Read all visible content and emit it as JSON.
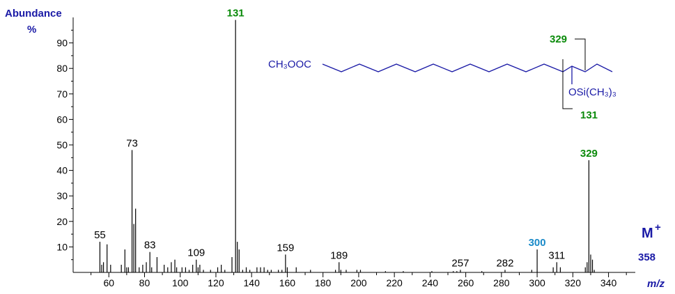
{
  "chart_data": {
    "type": "bar",
    "ylabel_line1": "Abundance",
    "ylabel_line2": "%",
    "xlabel": "m/z",
    "xlim": [
      40,
      355
    ],
    "ylim": [
      0,
      100
    ],
    "x_ticks": [
      60,
      80,
      100,
      120,
      140,
      160,
      180,
      200,
      220,
      240,
      260,
      280,
      300,
      320,
      340
    ],
    "y_ticks": [
      10,
      20,
      30,
      40,
      50,
      60,
      70,
      80,
      90
    ],
    "peaks": [
      {
        "mz": 55,
        "abundance": 12,
        "label": "55"
      },
      {
        "mz": 56,
        "abundance": 3
      },
      {
        "mz": 57,
        "abundance": 4
      },
      {
        "mz": 59,
        "abundance": 11
      },
      {
        "mz": 61,
        "abundance": 3
      },
      {
        "mz": 67,
        "abundance": 3
      },
      {
        "mz": 69,
        "abundance": 9
      },
      {
        "mz": 70,
        "abundance": 2
      },
      {
        "mz": 71,
        "abundance": 2
      },
      {
        "mz": 73,
        "abundance": 48,
        "label": "73"
      },
      {
        "mz": 74,
        "abundance": 19
      },
      {
        "mz": 75,
        "abundance": 25
      },
      {
        "mz": 77,
        "abundance": 2
      },
      {
        "mz": 79,
        "abundance": 3
      },
      {
        "mz": 81,
        "abundance": 4
      },
      {
        "mz": 83,
        "abundance": 8,
        "label": "83"
      },
      {
        "mz": 84,
        "abundance": 2
      },
      {
        "mz": 87,
        "abundance": 6
      },
      {
        "mz": 91,
        "abundance": 3
      },
      {
        "mz": 93,
        "abundance": 2
      },
      {
        "mz": 95,
        "abundance": 4
      },
      {
        "mz": 97,
        "abundance": 5
      },
      {
        "mz": 98,
        "abundance": 2
      },
      {
        "mz": 101,
        "abundance": 2
      },
      {
        "mz": 103,
        "abundance": 2
      },
      {
        "mz": 105,
        "abundance": 1
      },
      {
        "mz": 107,
        "abundance": 3
      },
      {
        "mz": 109,
        "abundance": 5,
        "label": "109"
      },
      {
        "mz": 110,
        "abundance": 2
      },
      {
        "mz": 111,
        "abundance": 3
      },
      {
        "mz": 113,
        "abundance": 1
      },
      {
        "mz": 117,
        "abundance": 1
      },
      {
        "mz": 121,
        "abundance": 2
      },
      {
        "mz": 123,
        "abundance": 3
      },
      {
        "mz": 125,
        "abundance": 1
      },
      {
        "mz": 129,
        "abundance": 6
      },
      {
        "mz": 131,
        "abundance": 99,
        "label": "131",
        "label_color": "#0a8a0a"
      },
      {
        "mz": 132,
        "abundance": 12
      },
      {
        "mz": 133,
        "abundance": 9
      },
      {
        "mz": 135,
        "abundance": 1
      },
      {
        "mz": 137,
        "abundance": 2
      },
      {
        "mz": 139,
        "abundance": 1
      },
      {
        "mz": 143,
        "abundance": 2
      },
      {
        "mz": 145,
        "abundance": 2
      },
      {
        "mz": 147,
        "abundance": 2
      },
      {
        "mz": 149,
        "abundance": 1
      },
      {
        "mz": 151,
        "abundance": 1
      },
      {
        "mz": 155,
        "abundance": 1
      },
      {
        "mz": 157,
        "abundance": 1
      },
      {
        "mz": 159,
        "abundance": 7,
        "label": "159"
      },
      {
        "mz": 160,
        "abundance": 2
      },
      {
        "mz": 165,
        "abundance": 2
      },
      {
        "mz": 173,
        "abundance": 1
      },
      {
        "mz": 187,
        "abundance": 1
      },
      {
        "mz": 189,
        "abundance": 4,
        "label": "189"
      },
      {
        "mz": 190,
        "abundance": 1
      },
      {
        "mz": 193,
        "abundance": 1
      },
      {
        "mz": 199,
        "abundance": 1
      },
      {
        "mz": 201,
        "abundance": 1
      },
      {
        "mz": 215,
        "abundance": 0.5
      },
      {
        "mz": 225,
        "abundance": 0.5
      },
      {
        "mz": 241,
        "abundance": 0.5
      },
      {
        "mz": 253,
        "abundance": 0.5
      },
      {
        "mz": 255,
        "abundance": 0.5
      },
      {
        "mz": 257,
        "abundance": 1,
        "label": "257"
      },
      {
        "mz": 269,
        "abundance": 0.5
      },
      {
        "mz": 282,
        "abundance": 1,
        "label": "282"
      },
      {
        "mz": 297,
        "abundance": 1
      },
      {
        "mz": 300,
        "abundance": 9,
        "label": "300",
        "label_color": "#1a8ac8"
      },
      {
        "mz": 309,
        "abundance": 2
      },
      {
        "mz": 311,
        "abundance": 4,
        "label": "311"
      },
      {
        "mz": 313,
        "abundance": 2
      },
      {
        "mz": 327,
        "abundance": 2
      },
      {
        "mz": 328,
        "abundance": 4
      },
      {
        "mz": 329,
        "abundance": 44,
        "label": "329",
        "label_color": "#0a8a0a"
      },
      {
        "mz": 330,
        "abundance": 7
      },
      {
        "mz": 331,
        "abundance": 5
      },
      {
        "mz": 332,
        "abundance": 1
      }
    ],
    "molecular_ion": {
      "label": "M",
      "sup": "+",
      "mz_label": "358"
    }
  },
  "structure": {
    "ester_group": "CH₃OOC",
    "tms_group": "OSi(CH₃)₃",
    "fragment_329": "329",
    "fragment_131": "131"
  },
  "colors": {
    "axis_label": "#1a1aa6",
    "fragment_green": "#0a8a0a",
    "highlight_blue": "#1a8ac8",
    "structure_line": "#1a1aa6"
  }
}
